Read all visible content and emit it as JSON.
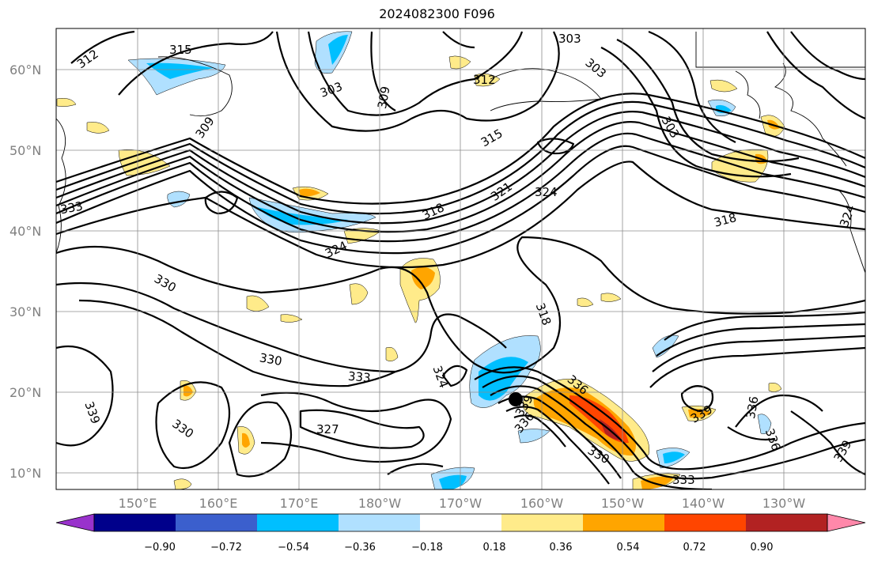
{
  "title": "2024082300 F096",
  "lat_labels": [
    "60°N",
    "50°N",
    "40°N",
    "30°N",
    "20°N",
    "10°N"
  ],
  "lon_labels": [
    "150°E",
    "160°E",
    "170°E",
    "180°W",
    "170°W",
    "160°W",
    "150°W",
    "140°W",
    "130°W"
  ],
  "colorbar": {
    "colors": [
      "#9932cc",
      "#00008b",
      "#3b5fcd",
      "#00bfff",
      "#b0e0ff",
      "#ffffff",
      "#ffeb8a",
      "#ffa500",
      "#ff4500",
      "#b22222",
      "#ff88aa"
    ],
    "tick_labels": [
      "−0.90",
      "−0.72",
      "−0.54",
      "−0.36",
      "−0.18",
      "0.18",
      "0.36",
      "0.54",
      "0.72",
      "0.90"
    ]
  },
  "contour_labels": [
    "312",
    "315",
    "303",
    "303",
    "309",
    "303",
    "309",
    "315",
    "312",
    "303",
    "318",
    "321",
    "324",
    "318",
    "324",
    "333",
    "324",
    "330",
    "318",
    "330",
    "333",
    "324",
    "327",
    "330",
    "339",
    "339",
    "336",
    "330",
    "336",
    "339",
    "336",
    "336",
    "339",
    "333"
  ],
  "marker": "storm-center"
}
